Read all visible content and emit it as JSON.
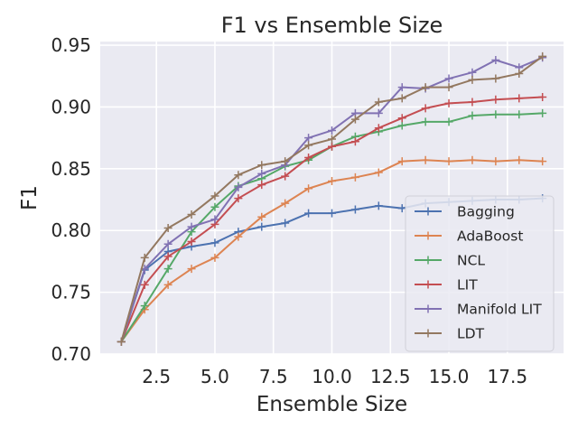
{
  "chart_data": {
    "type": "line",
    "title": "F1 vs Ensemble Size",
    "xlabel": "Ensemble Size",
    "ylabel": "F1",
    "xlim": [
      0.1,
      19.9
    ],
    "ylim": [
      0.7,
      0.953
    ],
    "xticks": [
      2.5,
      5.0,
      7.5,
      10.0,
      12.5,
      15.0,
      17.5
    ],
    "xtick_labels": [
      "2.5",
      "5.0",
      "7.5",
      "10.0",
      "12.5",
      "15.0",
      "17.5"
    ],
    "yticks": [
      0.7,
      0.75,
      0.8,
      0.85,
      0.9,
      0.95
    ],
    "ytick_labels": [
      "0.70",
      "0.75",
      "0.80",
      "0.85",
      "0.90",
      "0.95"
    ],
    "grid": true,
    "background": "#eaeaf2",
    "legend_position": "lower-right",
    "x": [
      1,
      2,
      3,
      4,
      5,
      6,
      7,
      8,
      9,
      10,
      11,
      12,
      13,
      14,
      15,
      16,
      17,
      18,
      19
    ],
    "series": [
      {
        "name": "Bagging",
        "color": "#4c72b0",
        "values": [
          0.71,
          0.768,
          0.783,
          0.787,
          0.79,
          0.799,
          0.803,
          0.806,
          0.814,
          0.814,
          0.817,
          0.82,
          0.818,
          0.822,
          0.823,
          0.824,
          0.825,
          0.825,
          0.826
        ]
      },
      {
        "name": "AdaBoost",
        "color": "#dd8452",
        "values": [
          0.71,
          0.736,
          0.756,
          0.769,
          0.778,
          0.795,
          0.811,
          0.822,
          0.834,
          0.84,
          0.843,
          0.847,
          0.856,
          0.857,
          0.856,
          0.857,
          0.856,
          0.857,
          0.856
        ]
      },
      {
        "name": "NCL",
        "color": "#55a868",
        "values": [
          0.71,
          0.739,
          0.769,
          0.799,
          0.819,
          0.836,
          0.842,
          0.852,
          0.857,
          0.868,
          0.876,
          0.88,
          0.885,
          0.888,
          0.888,
          0.893,
          0.894,
          0.894,
          0.895
        ]
      },
      {
        "name": "LIT",
        "color": "#c44e52",
        "values": [
          0.71,
          0.756,
          0.779,
          0.791,
          0.805,
          0.826,
          0.837,
          0.844,
          0.859,
          0.868,
          0.872,
          0.883,
          0.891,
          0.899,
          0.903,
          0.904,
          0.906,
          0.907,
          0.908
        ]
      },
      {
        "name": "Manifold LIT",
        "color": "#8172b3",
        "values": [
          0.71,
          0.769,
          0.789,
          0.803,
          0.809,
          0.835,
          0.846,
          0.853,
          0.875,
          0.881,
          0.895,
          0.895,
          0.916,
          0.915,
          0.923,
          0.928,
          0.938,
          0.932,
          0.94
        ]
      },
      {
        "name": "LDT",
        "color": "#937860",
        "values": [
          0.71,
          0.778,
          0.802,
          0.813,
          0.828,
          0.845,
          0.853,
          0.856,
          0.869,
          0.874,
          0.89,
          0.904,
          0.907,
          0.916,
          0.916,
          0.922,
          0.923,
          0.927,
          0.941
        ]
      }
    ]
  }
}
